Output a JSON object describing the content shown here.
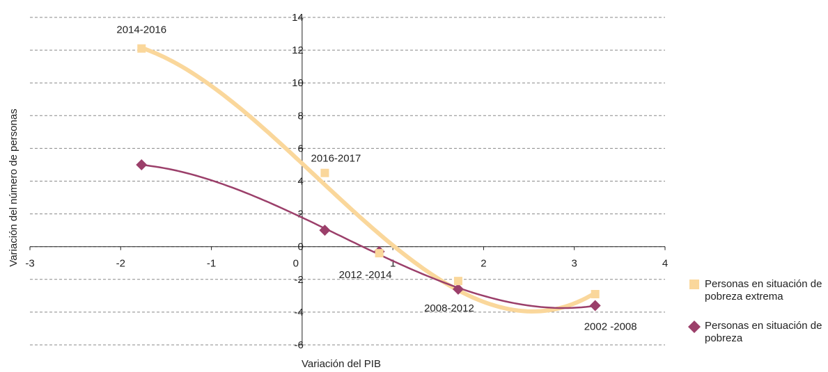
{
  "chart_data": {
    "type": "scatter",
    "xlabel": "Variación del PIB",
    "ylabel": "Variación del número de personas",
    "xlim": [
      -3,
      4
    ],
    "xticks": [
      -3,
      -2,
      -1,
      0,
      1,
      2,
      3,
      4
    ],
    "ylim": [
      -6,
      14
    ],
    "yticks": [
      -6,
      -4,
      -2,
      0,
      2,
      4,
      6,
      8,
      10,
      12,
      14
    ],
    "grid": true,
    "annotations": [
      "2014-2016",
      "2016-2017",
      "2012 -2014",
      "2008-2012",
      "2002 -2008"
    ],
    "x": [
      -1.77,
      0.25,
      0.85,
      1.72,
      3.23
    ],
    "series": [
      {
        "name": "Personas en situación de pobreza extrema",
        "color": "#fad79b",
        "marker": "square",
        "values": [
          12.1,
          4.5,
          -0.4,
          -2.1,
          -2.9
        ]
      },
      {
        "name": "Personas en situación de pobreza",
        "color": "#9b3f6a",
        "marker": "diamond",
        "values": [
          5.0,
          1.0,
          -0.3,
          -2.6,
          -3.6
        ]
      }
    ]
  }
}
